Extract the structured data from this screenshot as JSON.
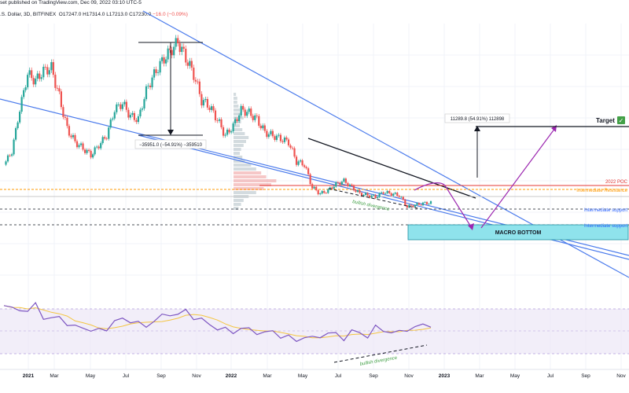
{
  "header": {
    "published": "set published on TradingView.com, Dec 09, 2022 03:10 UTC-5",
    "symbol": ".S. Dollar, 3D, BITFINEX",
    "o": "O17247.0",
    "h": "H17314.0",
    "l": "L17213.0",
    "c": "C17230.0",
    "chg": "−16.0 (−0.09%)"
  },
  "annotations": {
    "measure_left": "−35951.0 (−54.91%) −359510",
    "measure_right": "11289.8 (54.91%) 112898",
    "target": "Target",
    "target_mark": "✓",
    "poc": "2022 POC",
    "intermediate_resistance": "Intermediate Resistance",
    "intermediate_support_1": "Intermediate support",
    "intermediate_support_2": "Intermediate support",
    "macro_bottom": "MACRO BOTTOM",
    "bullish_divergence_price": "bullish divergence",
    "bullish_divergence_rsi": "bullish divergence"
  },
  "chart_data": [
    {
      "type": "line",
      "panel": "price",
      "x_tick_labels": [
        "2021",
        "Mar",
        "May",
        "Jul",
        "Sep",
        "Nov",
        "2022",
        "Mar",
        "May",
        "Jul",
        "Sep",
        "Nov",
        "2023",
        "Mar",
        "May",
        "Jul",
        "Sep",
        "Nov"
      ],
      "series": [
        {
          "values": [
            29000,
            33000,
            46000,
            57000,
            55000,
            58000,
            59000,
            50000,
            40000,
            36000,
            34000,
            32000,
            35000,
            38000,
            46000,
            48000,
            44000,
            43000,
            52000,
            57000,
            61000,
            64000,
            67000,
            62000,
            57000,
            49000,
            47000,
            43000,
            38000,
            41000,
            46000,
            45000,
            43000,
            39000,
            38000,
            37000,
            36000,
            30000,
            29000,
            22000,
            20000,
            21000,
            23000,
            24000,
            22000,
            20000,
            19500,
            19000,
            20500,
            20000,
            19500,
            16000,
            16500,
            17000,
            17230
          ]
        }
      ]
    },
    {
      "type": "line",
      "panel": "rsi",
      "ylim": [
        0,
        100
      ],
      "series": [
        {
          "values": [
            75,
            70,
            72,
            65,
            78,
            60,
            55,
            62,
            50,
            45,
            48,
            40,
            42,
            45,
            52,
            58,
            55,
            50,
            48,
            55,
            60,
            65,
            62,
            68,
            60,
            55,
            50,
            45,
            42,
            40,
            45,
            42,
            40,
            38,
            40,
            35,
            32,
            28,
            34,
            30,
            35,
            38,
            36,
            32,
            40,
            38,
            35,
            45,
            42,
            40,
            38,
            44,
            46,
            48,
            50
          ]
        }
      ]
    }
  ]
}
